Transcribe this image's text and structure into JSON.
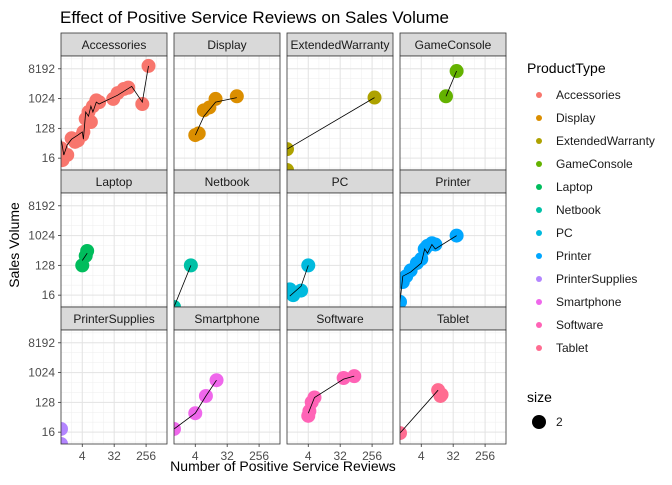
{
  "chart_data": {
    "type": "scatter",
    "title": "Effect of Positive Service Reviews on Sales Volume",
    "xlabel": "Number of Positive Service Reviews",
    "ylabel": "Sales Volume",
    "x_scale": "log2",
    "y_scale": "log2",
    "x_ticks": [
      4,
      32,
      256
    ],
    "x_tick_labels": [
      "4",
      "32",
      "256"
    ],
    "y_ticks": [
      16,
      128,
      1024,
      8192
    ],
    "y_tick_labels": [
      "16",
      "128",
      "1024",
      "8192"
    ],
    "xlim": [
      1,
      1000
    ],
    "ylim": [
      7,
      20000
    ],
    "grid": true,
    "fitted_line_color": "#000000",
    "legend": {
      "title": "ProductType",
      "position": "right",
      "entries": [
        "Accessories",
        "Display",
        "ExtendedWarranty",
        "GameConsole",
        "Laptop",
        "Netbook",
        "PC",
        "Printer",
        "PrinterSupplies",
        "Smartphone",
        "Software",
        "Tablet"
      ],
      "size_title": "size",
      "size_label": "2"
    },
    "panels": [
      {
        "name": "Accessories",
        "color": "#F8766D",
        "points": [
          [
            1,
            32
          ],
          [
            1.1,
            14
          ],
          [
            1.5,
            20
          ],
          [
            2,
            64
          ],
          [
            2.5,
            50
          ],
          [
            3,
            55
          ],
          [
            4,
            80
          ],
          [
            4.3,
            100
          ],
          [
            5,
            250
          ],
          [
            6,
            400
          ],
          [
            7,
            200
          ],
          [
            8,
            600
          ],
          [
            10,
            900
          ],
          [
            12,
            800
          ],
          [
            30,
            1000
          ],
          [
            40,
            1500
          ],
          [
            60,
            2000
          ],
          [
            80,
            2200
          ],
          [
            200,
            700
          ],
          [
            300,
            10000
          ]
        ],
        "line": [
          [
            1,
            64
          ],
          [
            1.2,
            20
          ],
          [
            1.5,
            40
          ],
          [
            2,
            60
          ],
          [
            3,
            80
          ],
          [
            4,
            100
          ],
          [
            4.3,
            60
          ],
          [
            5,
            400
          ],
          [
            6,
            300
          ],
          [
            7,
            600
          ],
          [
            8,
            400
          ],
          [
            10,
            800
          ],
          [
            12,
            700
          ],
          [
            40,
            1300
          ],
          [
            100,
            2400
          ],
          [
            200,
            800
          ],
          [
            300,
            10000
          ]
        ]
      },
      {
        "name": "Display",
        "color": "#DB8E00",
        "points": [
          [
            4,
            80
          ],
          [
            5,
            90
          ],
          [
            7,
            450
          ],
          [
            10,
            550
          ],
          [
            15,
            1000
          ],
          [
            60,
            1200
          ]
        ],
        "line": [
          [
            4,
            80
          ],
          [
            7,
            300
          ],
          [
            15,
            800
          ],
          [
            60,
            1100
          ]
        ]
      },
      {
        "name": "ExtendedWarranty",
        "color": "#AEA200",
        "points": [
          [
            1,
            7
          ],
          [
            1,
            30
          ],
          [
            300,
            1100
          ]
        ],
        "line": [
          [
            1,
            30
          ],
          [
            300,
            1100
          ]
        ]
      },
      {
        "name": "GameConsole",
        "color": "#64B200",
        "points": [
          [
            20,
            1200
          ],
          [
            40,
            7000
          ]
        ],
        "line": [
          [
            20,
            1200
          ],
          [
            40,
            7000
          ]
        ]
      },
      {
        "name": "Laptop",
        "color": "#00BD5C",
        "points": [
          [
            4,
            128
          ],
          [
            5,
            250
          ],
          [
            5.5,
            350
          ]
        ],
        "line": [
          [
            4,
            180
          ],
          [
            5.5,
            300
          ]
        ]
      },
      {
        "name": "Netbook",
        "color": "#00C1A7",
        "points": [
          [
            1,
            7
          ],
          [
            3,
            128
          ]
        ],
        "line": [
          [
            1,
            7
          ],
          [
            3,
            128
          ]
        ]
      },
      {
        "name": "PC",
        "color": "#00BADE",
        "points": [
          [
            1.2,
            24
          ],
          [
            1.5,
            16
          ],
          [
            2.5,
            22
          ],
          [
            4,
            128
          ]
        ],
        "line": [
          [
            1.2,
            15
          ],
          [
            2.5,
            30
          ],
          [
            4,
            128
          ]
        ]
      },
      {
        "name": "Printer",
        "color": "#00A6FF",
        "points": [
          [
            1,
            10
          ],
          [
            1.2,
            40
          ],
          [
            1.5,
            60
          ],
          [
            2,
            90
          ],
          [
            3,
            150
          ],
          [
            4,
            200
          ],
          [
            5,
            400
          ],
          [
            6,
            500
          ],
          [
            8,
            600
          ],
          [
            10,
            550
          ],
          [
            40,
            1024
          ]
        ],
        "line": [
          [
            1,
            10
          ],
          [
            1.2,
            60
          ],
          [
            2,
            80
          ],
          [
            4,
            150
          ],
          [
            5,
            400
          ],
          [
            6,
            300
          ],
          [
            8,
            550
          ],
          [
            10,
            400
          ],
          [
            40,
            1024
          ]
        ]
      },
      {
        "name": "PrinterSupplies",
        "color": "#B385FF",
        "points": [
          [
            1,
            20
          ],
          [
            1,
            7
          ]
        ],
        "line": []
      },
      {
        "name": "Smartphone",
        "color": "#EF67EB",
        "points": [
          [
            1,
            20
          ],
          [
            4,
            60
          ],
          [
            8,
            200
          ],
          [
            16,
            600
          ]
        ],
        "line": [
          [
            1,
            20
          ],
          [
            4,
            60
          ],
          [
            8,
            200
          ],
          [
            16,
            600
          ]
        ]
      },
      {
        "name": "Software",
        "color": "#FF63B6",
        "points": [
          [
            4,
            50
          ],
          [
            4.3,
            70
          ],
          [
            5,
            130
          ],
          [
            6,
            180
          ],
          [
            40,
            700
          ],
          [
            80,
            800
          ]
        ],
        "line": [
          [
            4,
            60
          ],
          [
            6,
            180
          ],
          [
            40,
            650
          ],
          [
            80,
            800
          ]
        ]
      },
      {
        "name": "Tablet",
        "color": "#FF6C91",
        "points": [
          [
            1,
            15
          ],
          [
            12,
            300
          ],
          [
            14,
            200
          ],
          [
            15,
            220
          ]
        ],
        "line": [
          [
            1,
            15
          ],
          [
            12,
            300
          ]
        ]
      }
    ]
  }
}
